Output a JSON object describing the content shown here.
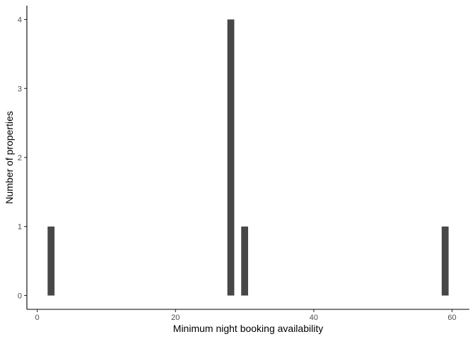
{
  "chart_data": {
    "type": "bar",
    "title": "",
    "xlabel": "Minimum night booking availability",
    "ylabel": "Number of properties",
    "x": [
      2,
      28,
      30,
      59
    ],
    "values": [
      1,
      4,
      1,
      1
    ],
    "bar_width": 1,
    "xlim": [
      -1.5,
      62.5
    ],
    "ylim": [
      -0.2,
      4.2
    ],
    "xticks": [
      0,
      20,
      40,
      60
    ],
    "yticks": [
      0,
      1,
      2,
      3,
      4
    ],
    "grid": false,
    "legend": "none",
    "bar_color": "#474747"
  }
}
